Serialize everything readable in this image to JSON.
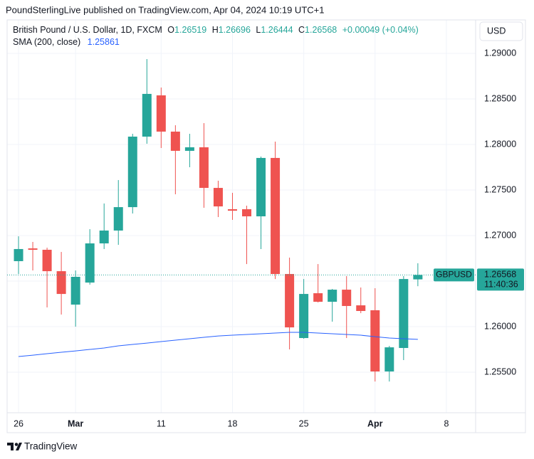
{
  "chart_data": {
    "type": "candlestick",
    "published": "PoundSterlingLive published on TradingView.com, Apr 04, 2024 10:19 UTC+1",
    "title": "British Pound / U.S. Dollar, 1D, FXCM",
    "ohlc_labels": [
      "O",
      "H",
      "L",
      "C"
    ],
    "change": "+0.00049 (+0.04%)",
    "currency": "USD",
    "symbol": "GBPUSD",
    "countdown": "11:40:36",
    "brand": "TradingView",
    "up_color": "#26a69a",
    "down_color": "#ef5350",
    "series": {
      "open": [
        1.26719,
        1.26859,
        1.26844,
        1.26609,
        1.26242,
        1.26484,
        1.26914,
        1.27055,
        1.27312,
        1.28086,
        1.28539,
        1.28141,
        1.2793,
        1.27969,
        1.27523,
        1.27289,
        1.27289,
        1.27211,
        1.27852,
        1.26578,
        1.25875,
        1.26367,
        1.26273,
        1.26406,
        1.26234,
        1.2618,
        1.25508,
        1.25766,
        1.26519
      ],
      "high": [
        1.26992,
        1.2693,
        1.26867,
        1.2682,
        1.26617,
        1.2707,
        1.27352,
        1.27609,
        1.28117,
        1.28937,
        1.28625,
        1.28211,
        1.28117,
        1.28234,
        1.27602,
        1.27469,
        1.27328,
        1.27867,
        1.28031,
        1.26758,
        1.26523,
        1.26687,
        1.26414,
        1.26555,
        1.2643,
        1.26422,
        1.25789,
        1.26555,
        1.26696
      ],
      "low": [
        1.26578,
        1.26617,
        1.26211,
        1.26133,
        1.26,
        1.26461,
        1.26852,
        1.26898,
        1.27242,
        1.28008,
        1.27961,
        1.27453,
        1.2775,
        1.27305,
        1.27203,
        1.27172,
        1.26687,
        1.26852,
        1.26523,
        1.2575,
        1.25867,
        1.26266,
        1.26055,
        1.25875,
        1.26148,
        1.25398,
        1.25398,
        1.25633,
        1.26444
      ],
      "close": [
        1.26852,
        1.26844,
        1.26609,
        1.26359,
        1.26547,
        1.26914,
        1.27055,
        1.27312,
        1.28086,
        1.28555,
        1.28141,
        1.2793,
        1.27969,
        1.27523,
        1.2732,
        1.27273,
        1.27211,
        1.27852,
        1.26578,
        1.25992,
        1.26359,
        1.26273,
        1.26406,
        1.26227,
        1.26172,
        1.25508,
        1.25773,
        1.26523,
        1.26568
      ]
    },
    "sma": {
      "name": "SMA (200, close)",
      "color": "#2962ff",
      "values": [
        1.25672,
        1.25687,
        1.25703,
        1.25719,
        1.25734,
        1.2575,
        1.25766,
        1.25789,
        1.25805,
        1.2582,
        1.25836,
        1.25852,
        1.25867,
        1.25883,
        1.25898,
        1.25906,
        1.25914,
        1.25922,
        1.2593,
        1.25938,
        1.25938,
        1.2593,
        1.25922,
        1.25914,
        1.25906,
        1.2589,
        1.25875,
        1.25867,
        1.25861
      ]
    },
    "xlim": [
      -0.8,
      32.05
    ],
    "xticks": [
      {
        "value": 0,
        "label": "26"
      },
      {
        "value": 4,
        "label": "Mar"
      },
      {
        "value": 10,
        "label": "11"
      },
      {
        "value": 15,
        "label": "18"
      },
      {
        "value": 20,
        "label": "25"
      },
      {
        "value": 25,
        "label": "Apr"
      },
      {
        "value": 30,
        "label": "8"
      }
    ],
    "ylim": [
      1.25055,
      1.29367
    ],
    "yticks": [
      {
        "value": 1.255,
        "label": "1.25500"
      },
      {
        "value": 1.26,
        "label": "1.26000"
      },
      {
        "value": 1.265,
        "label": "1.26500"
      },
      {
        "value": 1.27,
        "label": "1.27000"
      },
      {
        "value": 1.275,
        "label": "1.27500"
      },
      {
        "value": 1.28,
        "label": "1.28000"
      },
      {
        "value": 1.285,
        "label": "1.28500"
      },
      {
        "value": 1.29,
        "label": "1.29000"
      }
    ],
    "grid": true
  }
}
